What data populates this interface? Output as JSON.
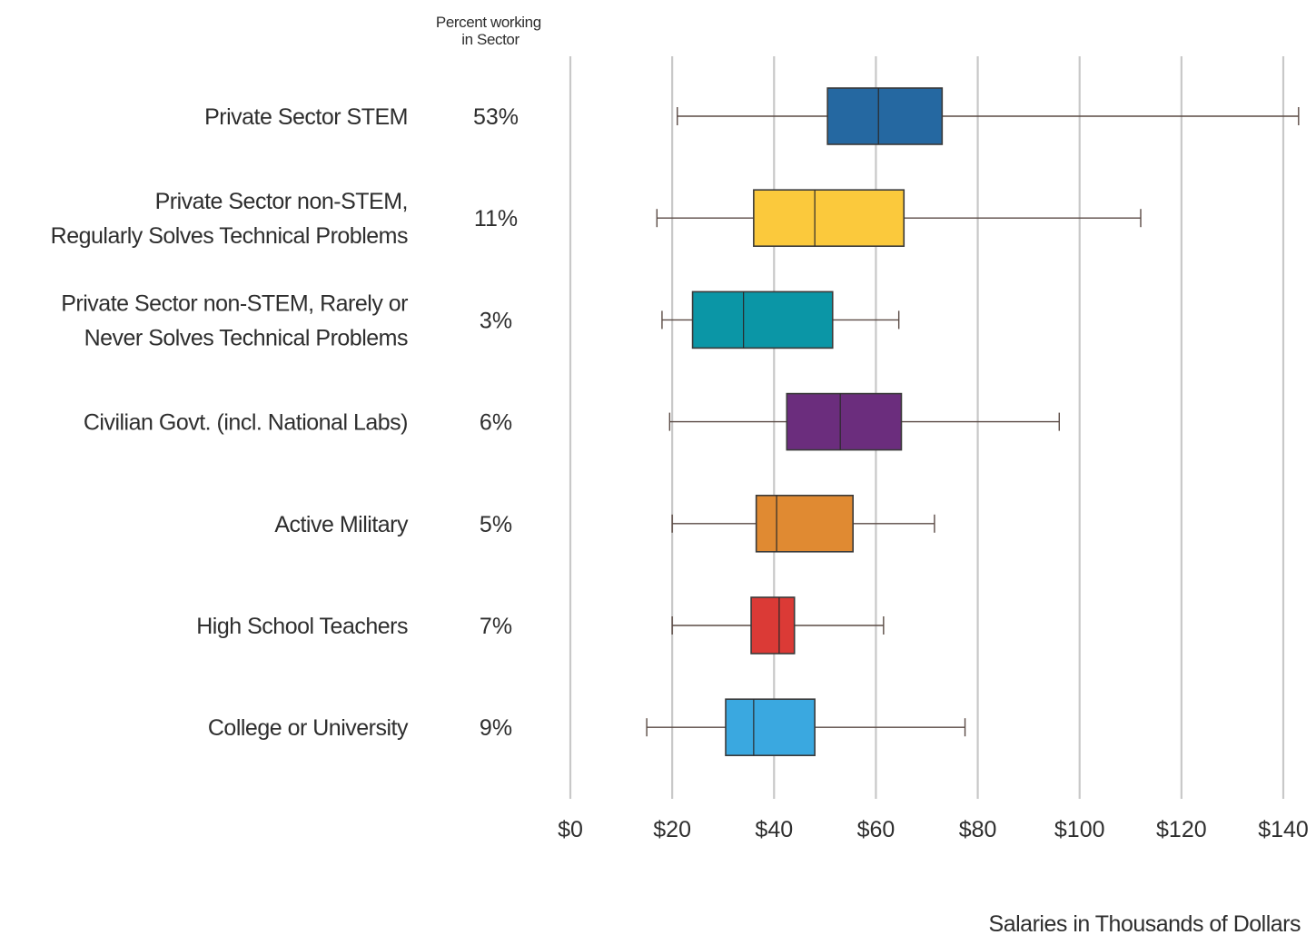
{
  "chart_data": {
    "type": "boxplot",
    "orientation": "horizontal",
    "column_header": "Percent working in Sector",
    "column_header_lines": [
      "Percent working",
      "in Sector"
    ],
    "xlabel": "Salaries in Thousands of Dollars",
    "xlim": [
      0,
      140
    ],
    "x_ticks": [
      0,
      20,
      40,
      60,
      80,
      100,
      120,
      140
    ],
    "x_tick_labels": [
      "$0",
      "$20",
      "$40",
      "$60",
      "$80",
      "$100",
      "$120",
      "$140"
    ],
    "grid": "vertical",
    "categories": [
      {
        "label_lines": [
          "Private Sector STEM"
        ],
        "percent": "53%",
        "min": 21,
        "q1": 50.5,
        "median": 60.5,
        "q3": 73,
        "max": 143,
        "color": "#2568a1"
      },
      {
        "label_lines": [
          "Private Sector non-STEM,",
          "Regularly Solves Technical Problems"
        ],
        "percent": "11%",
        "min": 17,
        "q1": 36,
        "median": 48,
        "q3": 65.5,
        "max": 112,
        "color": "#fbc93c"
      },
      {
        "label_lines": [
          "Private Sector non-STEM, Rarely or",
          "Never Solves Technical Problems"
        ],
        "percent": "3%",
        "min": 18,
        "q1": 24,
        "median": 34,
        "q3": 51.5,
        "max": 64.5,
        "color": "#0b96a6"
      },
      {
        "label_lines": [
          "Civilian Govt. (incl. National Labs)"
        ],
        "percent": "6%",
        "min": 19.5,
        "q1": 42.5,
        "median": 53,
        "q3": 65,
        "max": 96,
        "color": "#6b2d7d"
      },
      {
        "label_lines": [
          "Active Military"
        ],
        "percent": "5%",
        "min": 20,
        "q1": 36.5,
        "median": 40.5,
        "q3": 55.5,
        "max": 71.5,
        "color": "#e08a32"
      },
      {
        "label_lines": [
          "High School Teachers"
        ],
        "percent": "7%",
        "min": 20,
        "q1": 35.5,
        "median": 41,
        "q3": 44,
        "max": 61.5,
        "color": "#db3a36"
      },
      {
        "label_lines": [
          "College or University"
        ],
        "percent": "9%",
        "min": 15,
        "q1": 30.5,
        "median": 36,
        "q3": 48,
        "max": 77.5,
        "color": "#3aa8e0"
      }
    ]
  }
}
